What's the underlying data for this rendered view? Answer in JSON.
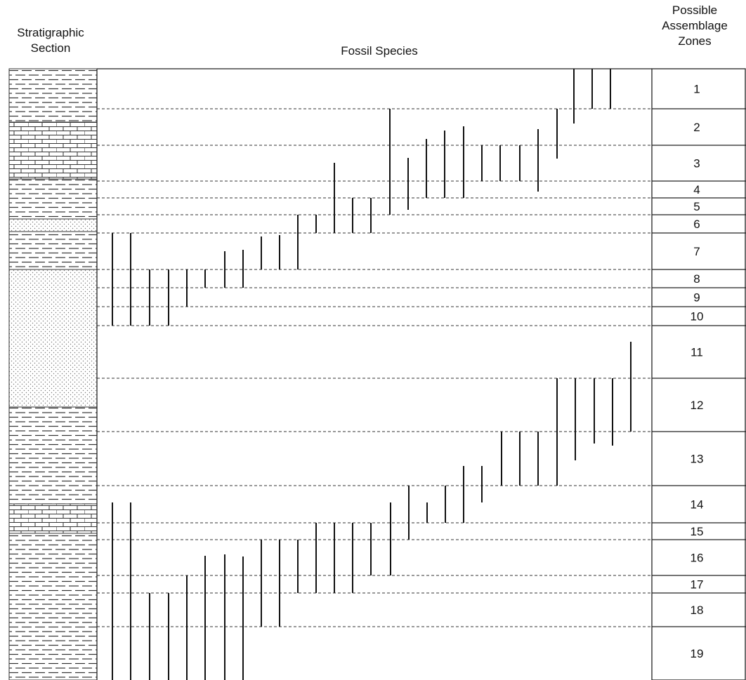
{
  "headers": {
    "stratigraphic_section_line1": "Stratigraphic",
    "stratigraphic_section_line2": "Section",
    "fossil_species": "Fossil Species",
    "zones_line1": "Possible",
    "zones_line2": "Assemblage",
    "zones_line3": "Zones"
  },
  "zones": [
    "1",
    "2",
    "3",
    "4",
    "5",
    "6",
    "7",
    "8",
    "9",
    "10",
    "11",
    "12",
    "13",
    "14",
    "15",
    "16",
    "17",
    "18",
    "19"
  ],
  "lithology": [
    {
      "type": "shale"
    },
    {
      "type": "limestone"
    },
    {
      "type": "shale"
    },
    {
      "type": "siltstone"
    },
    {
      "type": "shale"
    },
    {
      "type": "sandstone"
    },
    {
      "type": "shale"
    },
    {
      "type": "limestone"
    },
    {
      "type": "shale"
    }
  ]
}
